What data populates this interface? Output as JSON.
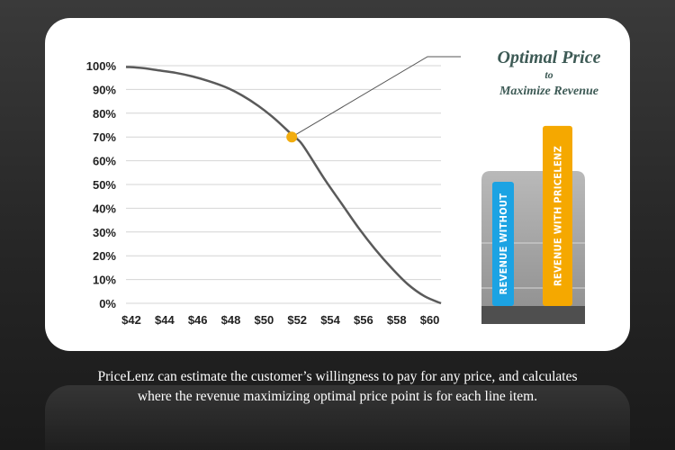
{
  "chart_data": {
    "type": "line",
    "x_tick_labels": [
      "$42",
      "$44",
      "$46",
      "$48",
      "$50",
      "$52",
      "$54",
      "$56",
      "$58",
      "$60"
    ],
    "y_tick_labels": [
      "0%",
      "10%",
      "20%",
      "30%",
      "40%",
      "50%",
      "60%",
      "70%",
      "80%",
      "90%",
      "100%"
    ],
    "xlim": [
      42,
      61
    ],
    "ylim": [
      0,
      100
    ],
    "grid": "horizontal",
    "series": [
      {
        "x": [
          42,
          43,
          44,
          45,
          46,
          47,
          48,
          49,
          50,
          51,
          52,
          52.5,
          53,
          54,
          55,
          56,
          57,
          58,
          59,
          60,
          61
        ],
        "y": [
          99.5,
          99,
          98,
          97,
          95.5,
          93.5,
          91,
          87.5,
          83,
          77.5,
          71,
          68,
          63,
          52,
          42,
          32,
          23,
          15,
          8,
          3,
          0
        ]
      }
    ],
    "highlight_point": {
      "x": 52,
      "y": 70
    },
    "annotation": {
      "title": "Optimal Price",
      "connector": "to",
      "subtitle": "Maximize Revenue"
    },
    "comparison_bars": {
      "without_label": "REVENUE WITHOUT",
      "with_label": "REVENUE WITH PRICELENZ",
      "without_value": 0.6,
      "with_value": 0.87,
      "without_color": "#1ca3e3",
      "with_color": "#f5a800"
    }
  },
  "caption": {
    "line1": "PriceLenz can estimate the customer’s willingness to pay for any price, and calculates",
    "line2": "where the revenue maximizing optimal price point is for each line item."
  },
  "colors": {
    "curve": "#5a5a5a",
    "highlight": "#f2ad0f",
    "grid": "#d4d4d4"
  }
}
